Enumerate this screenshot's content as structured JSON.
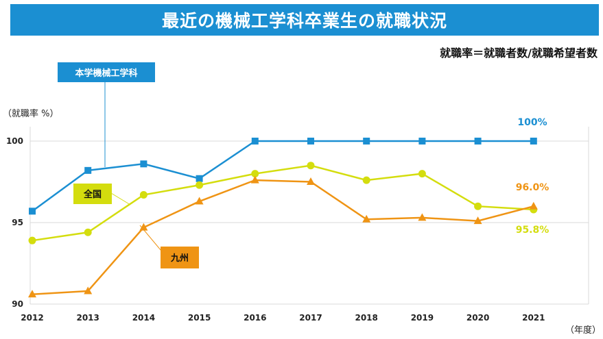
{
  "header": {
    "title": "最近の機械工学科卒業生の就職状況",
    "formula": "就職率＝就職者数/就職希望者数"
  },
  "colors": {
    "title_bg": "#1b8fd2",
    "department": "#1b8fd2",
    "national": "#d4dd0e",
    "kyushu": "#ef9414",
    "grid": "#d9d9d9"
  },
  "chart_data": {
    "type": "line",
    "title": "最近の機械工学科卒業生の就職状況",
    "xlabel": "（年度）",
    "ylabel": "（就職率 %）",
    "ylim": [
      90,
      100.6
    ],
    "yticks": [
      90,
      95,
      100
    ],
    "categories": [
      "2012",
      "2013",
      "2014",
      "2015",
      "2016",
      "2017",
      "2018",
      "2019",
      "2020",
      "2021"
    ],
    "series": [
      {
        "key": "department",
        "name": "本学機械工学科",
        "marker": "square",
        "values": [
          95.7,
          98.2,
          98.6,
          97.7,
          100,
          100,
          100,
          100,
          100,
          100
        ],
        "end_label": "100%"
      },
      {
        "key": "national",
        "name": "全国",
        "marker": "circle",
        "values": [
          93.9,
          94.4,
          96.7,
          97.3,
          98.0,
          98.5,
          97.6,
          98.0,
          96.0,
          95.8
        ],
        "end_label": "95.8%"
      },
      {
        "key": "kyushu",
        "name": "九州",
        "marker": "triangle",
        "values": [
          90.6,
          90.8,
          94.7,
          96.3,
          97.6,
          97.5,
          95.2,
          95.3,
          95.1,
          96.0
        ],
        "end_label": "96.0%"
      }
    ]
  }
}
